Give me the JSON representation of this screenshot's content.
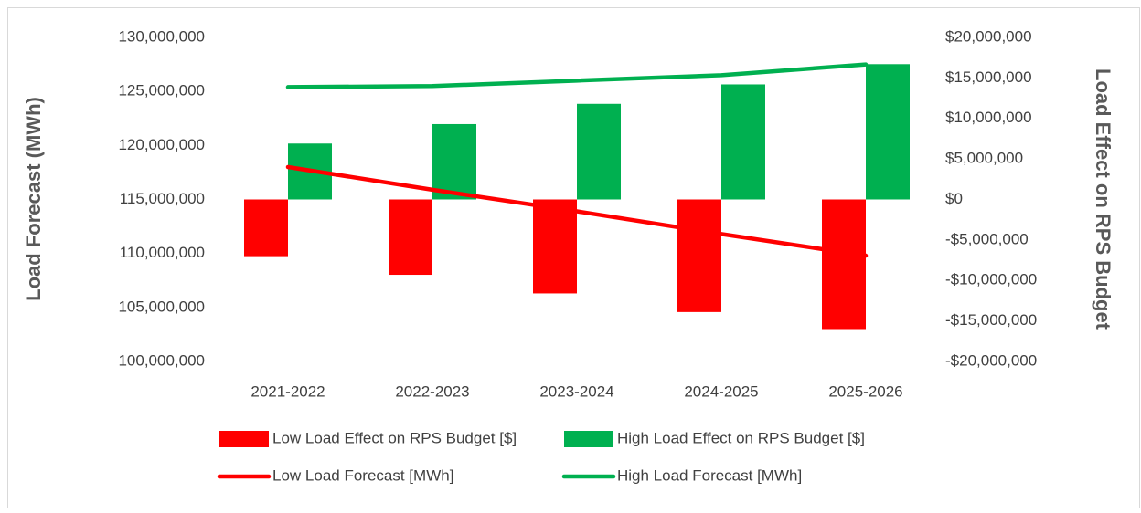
{
  "chart_data": {
    "type": "combo",
    "categories": [
      "2021-2022",
      "2022-2023",
      "2023-2024",
      "2024-2025",
      "2025-2026"
    ],
    "ylabel": "Load Forecast (MWh)",
    "y2label": "Load Effect on RPS Budget",
    "ylim": [
      100000000,
      130000000
    ],
    "yticks": [
      {
        "value": 100000000,
        "label": "100,000,000"
      },
      {
        "value": 105000000,
        "label": "105,000,000"
      },
      {
        "value": 110000000,
        "label": "110,000,000"
      },
      {
        "value": 115000000,
        "label": "115,000,000"
      },
      {
        "value": 120000000,
        "label": "120,000,000"
      },
      {
        "value": 125000000,
        "label": "125,000,000"
      },
      {
        "value": 130000000,
        "label": "130,000,000"
      }
    ],
    "y2lim": [
      -20000000,
      20000000
    ],
    "y2ticks": [
      {
        "value": -20000000,
        "label": "-$20,000,000"
      },
      {
        "value": -15000000,
        "label": "-$15,000,000"
      },
      {
        "value": -10000000,
        "label": "-$10,000,000"
      },
      {
        "value": -5000000,
        "label": "-$5,000,000"
      },
      {
        "value": 0,
        "label": "$0"
      },
      {
        "value": 5000000,
        "label": "$5,000,000"
      },
      {
        "value": 10000000,
        "label": "$10,000,000"
      },
      {
        "value": 15000000,
        "label": "$15,000,000"
      },
      {
        "value": 20000000,
        "label": "$20,000,000"
      }
    ],
    "grid": false,
    "legend": "bottom",
    "series": [
      {
        "name": "Low Load Effect on RPS Budget [$]",
        "type": "bar",
        "axis": "y2",
        "color": "#ff0000",
        "values": [
          -7000000,
          -9300000,
          -11600000,
          -13900000,
          -16000000
        ]
      },
      {
        "name": "High Load Effect on RPS Budget [$]",
        "type": "bar",
        "axis": "y2",
        "color": "#00b050",
        "values": [
          6900000,
          9300000,
          11800000,
          14200000,
          16700000
        ]
      },
      {
        "name": "Low Load Forecast [MWh]",
        "type": "line",
        "axis": "y",
        "color": "#ff0000",
        "values": [
          118000000,
          115900000,
          113900000,
          111800000,
          109800000
        ]
      },
      {
        "name": "High Load Forecast [MWh]",
        "type": "line",
        "axis": "y",
        "color": "#00b050",
        "values": [
          125400000,
          125500000,
          126000000,
          126500000,
          127500000
        ]
      }
    ]
  }
}
